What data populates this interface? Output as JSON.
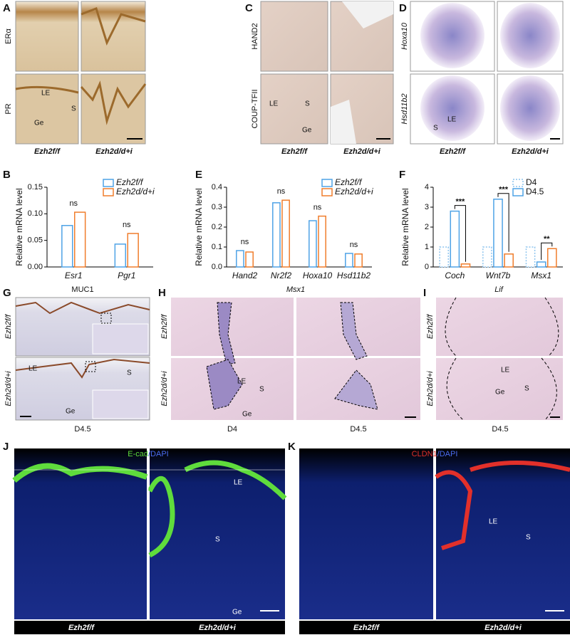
{
  "panel_letters": [
    "A",
    "B",
    "C",
    "D",
    "E",
    "F",
    "G",
    "H",
    "I",
    "J",
    "K"
  ],
  "genotypes": {
    "control": "Ezh2f/f",
    "mutant": "Ezh2d/d+i"
  },
  "stages": {
    "d4": "D4",
    "d45": "D4.5"
  },
  "A": {
    "rows": [
      "ERα",
      "PR"
    ],
    "annotations": [
      "LE",
      "S",
      "Ge"
    ]
  },
  "C": {
    "rows": [
      "HAND2",
      "COUP-TFII"
    ],
    "annotations": [
      "LE",
      "S",
      "Ge"
    ]
  },
  "D": {
    "rows": [
      "Hoxa10",
      "Hsd11b2"
    ],
    "annotations": [
      "LE",
      "S"
    ]
  },
  "G": {
    "title": "MUC1",
    "annotations": [
      "LE",
      "S",
      "Ge"
    ]
  },
  "H": {
    "title": "Msx1",
    "annotations": [
      "LE",
      "S",
      "Ge"
    ]
  },
  "I": {
    "title": "Lif",
    "annotations": [
      "LE",
      "S",
      "Ge"
    ]
  },
  "J": {
    "stain": [
      "E-cad",
      "/DAPI"
    ],
    "annotations": [
      "LE",
      "S",
      "Ge"
    ]
  },
  "K": {
    "stain": [
      "CLDN1",
      "/DAPI"
    ],
    "annotations": [
      "LE",
      "S"
    ]
  },
  "chart_data": [
    {
      "type": "bar",
      "ylabel": "Relative mRNA level",
      "categories": [
        "Esr1",
        "Pgr1"
      ],
      "series": [
        {
          "name": "Ezh2f/f",
          "color": "#4fa3e6",
          "values": [
            0.078,
            0.043
          ]
        },
        {
          "name": "Ezh2d/d+i",
          "color": "#f07d2c",
          "values": [
            0.103,
            0.063
          ]
        }
      ],
      "significance": [
        "ns",
        "ns"
      ],
      "ylim": [
        0,
        0.15
      ],
      "yticks": [
        {
          "value": 0,
          "label": "0.00"
        },
        {
          "value": 0.05,
          "label": "0.05"
        },
        {
          "value": 0.1,
          "label": "0.10"
        },
        {
          "value": 0.15,
          "label": "0.15"
        }
      ],
      "legend": "top-right"
    },
    {
      "type": "bar",
      "ylabel": "Relative mRNA level",
      "categories": [
        "Hand2",
        "Nr2f2",
        "Hoxa10",
        "Hsd11b2"
      ],
      "series": [
        {
          "name": "Ezh2f/f",
          "color": "#4fa3e6",
          "values": [
            0.082,
            0.322,
            0.232,
            0.068
          ]
        },
        {
          "name": "Ezh2d/d+i",
          "color": "#f07d2c",
          "values": [
            0.075,
            0.335,
            0.255,
            0.065
          ]
        }
      ],
      "significance": [
        "ns",
        "ns",
        "ns",
        "ns"
      ],
      "ylim": [
        0,
        0.4
      ],
      "yticks": [
        {
          "value": 0,
          "label": "0.0"
        },
        0.1,
        0.2,
        0.3,
        0.4
      ],
      "legend": "top-right"
    },
    {
      "type": "bar",
      "ylabel": "Relative mRNA level",
      "categories": [
        "Coch",
        "Wnt7b",
        "Msx1"
      ],
      "series": [
        {
          "name": "D4",
          "color": "#8cc3ee",
          "line_style": "dotted",
          "values": [
            1.0,
            1.0,
            1.0
          ]
        },
        {
          "name": "D4.5",
          "color": "#4fa3e6",
          "values": [
            2.8,
            3.4,
            0.25
          ]
        },
        {
          "name": null,
          "color": "#f07d2c",
          "values": [
            0.15,
            0.65,
            0.92
          ]
        }
      ],
      "significance": [
        "***",
        "***",
        "**"
      ],
      "ylim": [
        0,
        4
      ],
      "yticks": [
        0,
        1,
        2,
        3,
        4
      ],
      "legend": "top-right"
    }
  ]
}
